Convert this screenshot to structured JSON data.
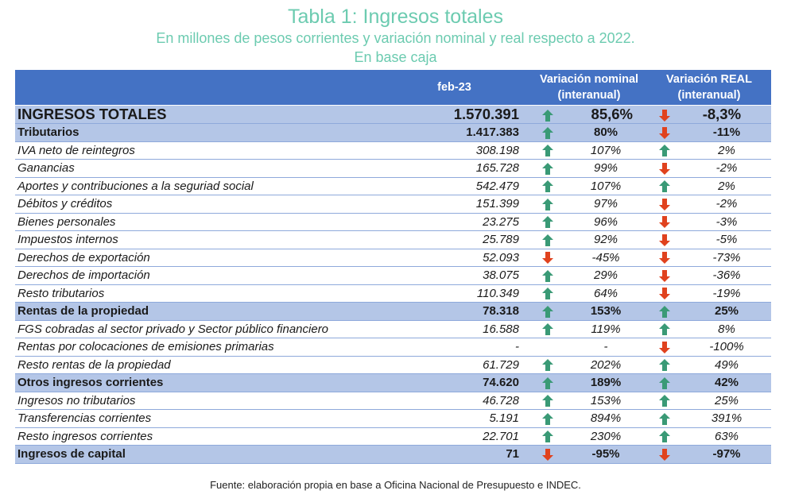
{
  "title": "Tabla 1: Ingresos totales",
  "subtitle": "En millones de pesos corrientes y variación nominal y real respecto a 2022.",
  "subtitle2": "En base caja",
  "colors": {
    "accent": "#6ccbb0",
    "header_bg": "#4472c4",
    "section_bg": "#b4c6e7",
    "arrow_up": "#3a9a76",
    "arrow_down": "#e0421e"
  },
  "header": {
    "period": "feb-23",
    "nominal_line1": "Variación nominal",
    "nominal_line2": "(interanual)",
    "real_line1": "Variación REAL",
    "real_line2": "(interanual)"
  },
  "rows": [
    {
      "type": "total",
      "label": "INGRESOS TOTALES",
      "value": "1.570.391",
      "nom_dir": "up",
      "nominal": "85,6%",
      "real_dir": "down",
      "real": "-8,3%"
    },
    {
      "type": "section",
      "label": "Tributarios",
      "value": "1.417.383",
      "nom_dir": "up",
      "nominal": "80%",
      "real_dir": "down",
      "real": "-11%"
    },
    {
      "type": "item",
      "label": "IVA neto de reintegros",
      "value": "308.198",
      "nom_dir": "up",
      "nominal": "107%",
      "real_dir": "up",
      "real": "2%"
    },
    {
      "type": "item",
      "label": "Ganancias",
      "value": "165.728",
      "nom_dir": "up",
      "nominal": "99%",
      "real_dir": "down",
      "real": "-2%"
    },
    {
      "type": "item",
      "label": "Aportes y contribuciones a la seguriad social",
      "value": "542.479",
      "nom_dir": "up",
      "nominal": "107%",
      "real_dir": "up",
      "real": "2%"
    },
    {
      "type": "item",
      "label": "Débitos y créditos",
      "value": "151.399",
      "nom_dir": "up",
      "nominal": "97%",
      "real_dir": "down",
      "real": "-2%"
    },
    {
      "type": "item",
      "label": "Bienes personales",
      "value": "23.275",
      "nom_dir": "up",
      "nominal": "96%",
      "real_dir": "down",
      "real": "-3%"
    },
    {
      "type": "item",
      "label": "Impuestos internos",
      "value": "25.789",
      "nom_dir": "up",
      "nominal": "92%",
      "real_dir": "down",
      "real": "-5%"
    },
    {
      "type": "item",
      "label": "Derechos de exportación",
      "value": "52.093",
      "nom_dir": "down",
      "nominal": "-45%",
      "real_dir": "down",
      "real": "-73%"
    },
    {
      "type": "item",
      "label": "Derechos de importación",
      "value": "38.075",
      "nom_dir": "up",
      "nominal": "29%",
      "real_dir": "down",
      "real": "-36%"
    },
    {
      "type": "item",
      "label": "Resto tributarios",
      "value": "110.349",
      "nom_dir": "up",
      "nominal": "64%",
      "real_dir": "down",
      "real": "-19%"
    },
    {
      "type": "section",
      "label": "Rentas de la propiedad",
      "value": "78.318",
      "nom_dir": "up",
      "nominal": "153%",
      "real_dir": "up",
      "real": "25%"
    },
    {
      "type": "item",
      "label": "FGS cobradas al sector privado y Sector público financiero",
      "value": "16.588",
      "nom_dir": "up",
      "nominal": "119%",
      "real_dir": "up",
      "real": "8%"
    },
    {
      "type": "item",
      "label": "Rentas por colocaciones de emisiones primarias",
      "value": "-",
      "nom_dir": "",
      "nominal": "-",
      "real_dir": "down",
      "real": "-100%"
    },
    {
      "type": "item",
      "label": "Resto rentas de la propiedad",
      "value": "61.729",
      "nom_dir": "up",
      "nominal": "202%",
      "real_dir": "up",
      "real": "49%"
    },
    {
      "type": "section",
      "label": "Otros ingresos corrientes",
      "value": "74.620",
      "nom_dir": "up",
      "nominal": "189%",
      "real_dir": "up",
      "real": "42%"
    },
    {
      "type": "item",
      "label": "Ingresos no tributarios",
      "value": "46.728",
      "nom_dir": "up",
      "nominal": "153%",
      "real_dir": "up",
      "real": "25%"
    },
    {
      "type": "item",
      "label": "Transferencias corrientes",
      "value": "5.191",
      "nom_dir": "up",
      "nominal": "894%",
      "real_dir": "up",
      "real": "391%"
    },
    {
      "type": "item",
      "label": "Resto ingresos corrientes",
      "value": "22.701",
      "nom_dir": "up",
      "nominal": "230%",
      "real_dir": "up",
      "real": "63%"
    },
    {
      "type": "section",
      "label": "Ingresos de capital",
      "value": "71",
      "nom_dir": "down",
      "nominal": "-95%",
      "real_dir": "down",
      "real": "-97%"
    }
  ],
  "footer": "Fuente: elaboración propia en base a Oficina Nacional de Presupuesto e INDEC."
}
